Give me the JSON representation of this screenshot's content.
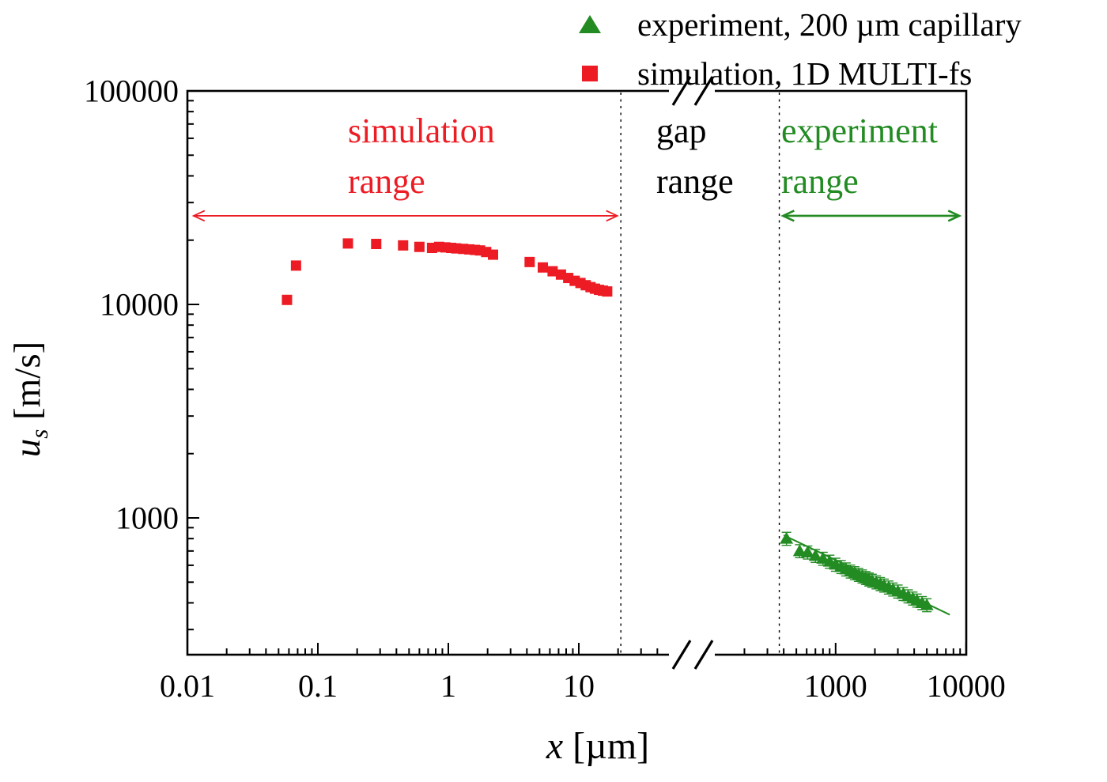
{
  "chart_data": {
    "type": "scatter",
    "title": "",
    "xlabel": "x [µm]",
    "ylabel": "u_s [m/s]",
    "xlabel_parts": {
      "var": "x",
      "unit": "[µm]"
    },
    "ylabel_parts": {
      "var": "u",
      "sub": "s",
      "unit": "[m/s]"
    },
    "x_scale": "log10 with axis break (gap between ~48 µm and ~120 µm)",
    "y_scale": "log10",
    "ylim": [
      230,
      100000
    ],
    "xlim_segment1": [
      0.01,
      48
    ],
    "xlim_segment2": [
      120,
      10000
    ],
    "grid": false,
    "legend_position": "top-right, outside plot area",
    "legend": [
      {
        "label": "experiment, 200 µm capillary",
        "marker": "triangle",
        "color": "#228b22"
      },
      {
        "label": "simulation, 1D MULTI-fs",
        "marker": "square",
        "color": "#ed1c24"
      }
    ],
    "x_ticks": [
      {
        "value": 0.01,
        "label": "0.01"
      },
      {
        "value": 0.1,
        "label": "0.1"
      },
      {
        "value": 1,
        "label": "1"
      },
      {
        "value": 10,
        "label": "10"
      },
      {
        "value": 1000,
        "label": "1000"
      },
      {
        "value": 10000,
        "label": "10000"
      }
    ],
    "y_ticks": [
      {
        "value": 1000,
        "label": "1000"
      },
      {
        "value": 10000,
        "label": "10000"
      },
      {
        "value": 100000,
        "label": "100000"
      }
    ],
    "annotations": [
      {
        "lines": [
          "simulation",
          "range"
        ],
        "color": "#ed1c24"
      },
      {
        "lines": [
          "gap",
          "range"
        ],
        "color": "#000000"
      },
      {
        "lines": [
          "experiment",
          "range"
        ],
        "color": "#228b22"
      }
    ],
    "range_arrows": [
      {
        "name": "simulation-range-arrow",
        "color": "#ed1c24",
        "x_from": 0.011,
        "x_to": 20,
        "y": 26000,
        "width": 1.8
      },
      {
        "name": "experiment-range-arrow",
        "color": "#228b22",
        "x_from": 390,
        "x_to": 9000,
        "y": 26000,
        "width": 2.6
      }
    ],
    "dashed_lines_x": [
      21,
      370
    ],
    "series": [
      {
        "name": "simulation, 1D MULTI-fs",
        "marker": "square",
        "color": "#ed1c24",
        "points": [
          [
            0.058,
            10500
          ],
          [
            0.068,
            15200
          ],
          [
            0.17,
            19300
          ],
          [
            0.28,
            19200
          ],
          [
            0.45,
            18900
          ],
          [
            0.6,
            18600
          ],
          [
            0.75,
            18400
          ],
          [
            0.85,
            18600
          ],
          [
            0.95,
            18500
          ],
          [
            1.05,
            18400
          ],
          [
            1.15,
            18300
          ],
          [
            1.3,
            18200
          ],
          [
            1.45,
            18100
          ],
          [
            1.6,
            18000
          ],
          [
            1.75,
            17900
          ],
          [
            1.95,
            17600
          ],
          [
            2.2,
            17100
          ],
          [
            4.2,
            15800
          ],
          [
            5.3,
            14900
          ],
          [
            6.3,
            14300
          ],
          [
            7.3,
            13800
          ],
          [
            8.3,
            13300
          ],
          [
            9.3,
            12900
          ],
          [
            10.3,
            12600
          ],
          [
            11.3,
            12300
          ],
          [
            12.3,
            12050
          ],
          [
            13.3,
            11850
          ],
          [
            14.3,
            11700
          ],
          [
            15.3,
            11600
          ],
          [
            16.5,
            11500
          ]
        ]
      },
      {
        "name": "experiment, 200 µm capillary",
        "marker": "triangle",
        "color": "#228b22",
        "y_error_frac": 0.07,
        "fit_line": {
          "x1": 400,
          "y1": 830,
          "x2": 7500,
          "y2": 352
        },
        "points": [
          [
            420,
            800
          ],
          [
            530,
            700
          ],
          [
            610,
            690
          ],
          [
            700,
            665
          ],
          [
            800,
            645
          ],
          [
            900,
            625
          ],
          [
            1000,
            605
          ],
          [
            1100,
            590
          ],
          [
            1200,
            575
          ],
          [
            1300,
            562
          ],
          [
            1400,
            552
          ],
          [
            1500,
            542
          ],
          [
            1600,
            533
          ],
          [
            1700,
            524
          ],
          [
            1800,
            516
          ],
          [
            1900,
            509
          ],
          [
            2050,
            500
          ],
          [
            2200,
            491
          ],
          [
            2350,
            483
          ],
          [
            2550,
            473
          ],
          [
            2750,
            463
          ],
          [
            3000,
            453
          ],
          [
            3300,
            441
          ],
          [
            3600,
            430
          ],
          [
            3900,
            420
          ],
          [
            4200,
            411
          ],
          [
            4600,
            400
          ],
          [
            5000,
            391
          ]
        ]
      }
    ]
  }
}
